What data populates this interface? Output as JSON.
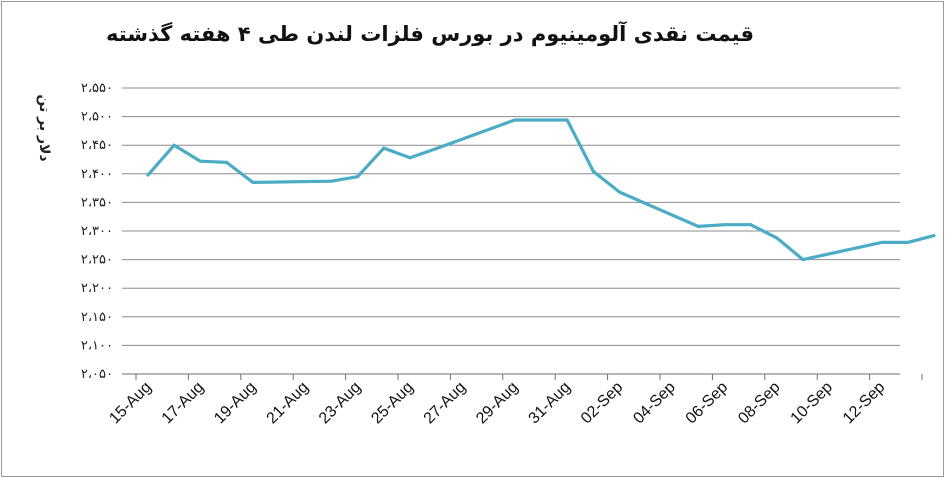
{
  "chart_data": {
    "type": "line",
    "title": "قیمت نقدی آلومینیوم در بورس فلزات لندن طی ۴ هفته گذشته",
    "xlabel": "",
    "ylabel": "دلار بر تن",
    "ylim": [
      2050,
      2550
    ],
    "yticks": [
      2050,
      2100,
      2150,
      2200,
      2250,
      2300,
      2350,
      2400,
      2450,
      2500,
      2550
    ],
    "ytick_labels": [
      "۲،۰۵۰",
      "۲،۱۰۰",
      "۲،۱۵۰",
      "۲،۲۰۰",
      "۲،۲۵۰",
      "۲،۳۰۰",
      "۲،۳۵۰",
      "۲،۴۰۰",
      "۲،۴۵۰",
      "۲،۵۰۰",
      "۲،۵۵۰"
    ],
    "xtick_labels": [
      "15-Aug",
      "17-Aug",
      "19-Aug",
      "21-Aug",
      "23-Aug",
      "25-Aug",
      "27-Aug",
      "29-Aug",
      "31-Aug",
      "02-Sep",
      "04-Sep",
      "06-Sep",
      "08-Sep",
      "10-Sep",
      "12-Sep"
    ],
    "grid": true,
    "line_color": "#4bacc6",
    "series": [
      {
        "name": "",
        "x": [
          "15-Aug",
          "16-Aug",
          "17-Aug",
          "18-Aug",
          "19-Aug",
          "22-Aug",
          "23-Aug",
          "24-Aug",
          "25-Aug",
          "26-Aug",
          "29-Aug",
          "30-Aug",
          "31-Aug",
          "01-Sep",
          "02-Sep",
          "05-Sep",
          "06-Sep",
          "07-Sep",
          "08-Sep",
          "09-Sep",
          "12-Sep",
          "13-Sep",
          "14-Sep"
        ],
        "values": [
          2398,
          2450,
          2422,
          2420,
          2385,
          2387,
          2395,
          2445,
          2428,
          2444,
          2494,
          2494,
          2494,
          2404,
          2368,
          2308,
          2311,
          2311,
          2288,
          2250,
          2280,
          2280,
          2292
        ]
      }
    ]
  }
}
